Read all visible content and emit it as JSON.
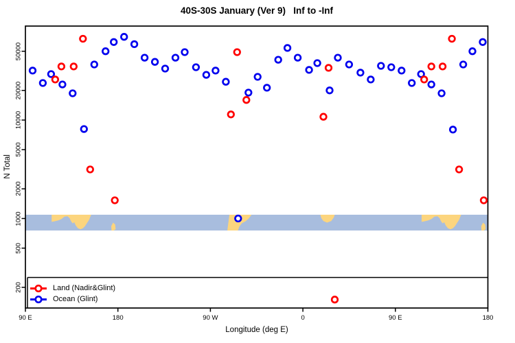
{
  "title": "40S-30S January (Ver 9)   Inf to -Inf",
  "chart_data": {
    "type": "scatter",
    "title": "40S-30S January (Ver 9)   Inf to -Inf",
    "xlabel": "Longitude (deg E)",
    "ylabel": "N Total",
    "x_axis": {
      "min": 90,
      "max": 540,
      "ticks": [
        {
          "value": 90,
          "label": "90 E"
        },
        {
          "value": 180,
          "label": "180"
        },
        {
          "value": 270,
          "label": "90 W"
        },
        {
          "value": 360,
          "label": "0"
        },
        {
          "value": 450,
          "label": "90 E"
        },
        {
          "value": 540,
          "label": "180"
        }
      ]
    },
    "y_axis": {
      "scale": "log",
      "min": 120,
      "max": 90000,
      "ticks": [
        {
          "value": 200,
          "label": "200"
        },
        {
          "value": 500,
          "label": "500"
        },
        {
          "value": 1000,
          "label": "1000"
        },
        {
          "value": 2000,
          "label": "2000"
        },
        {
          "value": 5000,
          "label": "5000"
        },
        {
          "value": 10000,
          "label": "10000"
        },
        {
          "value": 20000,
          "label": "20000"
        },
        {
          "value": 50000,
          "label": "50000"
        }
      ]
    },
    "legend": {
      "position": "bottom-left",
      "items": [
        {
          "label": "Land (Nadir&Glint)",
          "color": "#ff0000"
        },
        {
          "label": "Ocean (Glint)",
          "color": "#0000ee"
        }
      ]
    },
    "series": [
      {
        "name": "Ocean (Glint)",
        "color": "#0000ee",
        "points": [
          {
            "lon": 97,
            "n": 31800
          },
          {
            "lon": 107,
            "n": 23800
          },
          {
            "lon": 115,
            "n": 29300
          },
          {
            "lon": 126,
            "n": 23000
          },
          {
            "lon": 136,
            "n": 18700
          },
          {
            "lon": 147,
            "n": 8100
          },
          {
            "lon": 157,
            "n": 36700
          },
          {
            "lon": 168,
            "n": 50000
          },
          {
            "lon": 176,
            "n": 62000
          },
          {
            "lon": 186,
            "n": 70000
          },
          {
            "lon": 196,
            "n": 59000
          },
          {
            "lon": 206,
            "n": 43000
          },
          {
            "lon": 216,
            "n": 39000
          },
          {
            "lon": 226,
            "n": 33300
          },
          {
            "lon": 236,
            "n": 43000
          },
          {
            "lon": 245,
            "n": 49000
          },
          {
            "lon": 256,
            "n": 34400
          },
          {
            "lon": 266,
            "n": 28800
          },
          {
            "lon": 275,
            "n": 31800
          },
          {
            "lon": 285,
            "n": 24500
          },
          {
            "lon": 297,
            "n": 1000
          },
          {
            "lon": 307,
            "n": 19000
          },
          {
            "lon": 316,
            "n": 27500
          },
          {
            "lon": 325,
            "n": 21300
          },
          {
            "lon": 336,
            "n": 41000
          },
          {
            "lon": 345,
            "n": 54000
          },
          {
            "lon": 355,
            "n": 43000
          },
          {
            "lon": 366,
            "n": 32300
          },
          {
            "lon": 374,
            "n": 37900
          },
          {
            "lon": 386,
            "n": 20000
          },
          {
            "lon": 394,
            "n": 43000
          },
          {
            "lon": 405,
            "n": 36700
          },
          {
            "lon": 416,
            "n": 30300
          },
          {
            "lon": 426,
            "n": 25800
          },
          {
            "lon": 436,
            "n": 35500
          },
          {
            "lon": 446,
            "n": 34400
          },
          {
            "lon": 456,
            "n": 31800
          },
          {
            "lon": 466,
            "n": 23800
          },
          {
            "lon": 475,
            "n": 29300
          },
          {
            "lon": 485,
            "n": 23000
          },
          {
            "lon": 495,
            "n": 18700
          },
          {
            "lon": 506,
            "n": 8000
          },
          {
            "lon": 516,
            "n": 36700
          },
          {
            "lon": 525,
            "n": 50000
          },
          {
            "lon": 535,
            "n": 62000
          }
        ]
      },
      {
        "name": "Land (Nadir&Glint)",
        "color": "#ff0000",
        "points": [
          {
            "lon": 119,
            "n": 25800
          },
          {
            "lon": 125,
            "n": 35000
          },
          {
            "lon": 137,
            "n": 35000
          },
          {
            "lon": 146,
            "n": 67000
          },
          {
            "lon": 153,
            "n": 3150
          },
          {
            "lon": 177,
            "n": 1530
          },
          {
            "lon": 290,
            "n": 11400
          },
          {
            "lon": 296,
            "n": 49000
          },
          {
            "lon": 305,
            "n": 16000
          },
          {
            "lon": 380,
            "n": 10800
          },
          {
            "lon": 385,
            "n": 33900
          },
          {
            "lon": 391,
            "n": 150
          },
          {
            "lon": 478,
            "n": 25800
          },
          {
            "lon": 485,
            "n": 35000
          },
          {
            "lon": 496,
            "n": 35000
          },
          {
            "lon": 505,
            "n": 67000
          },
          {
            "lon": 512,
            "n": 3150
          },
          {
            "lon": 536,
            "n": 1530
          }
        ]
      }
    ],
    "map_strip": {
      "n_center": 1000,
      "ocean_color": "#a8bdde",
      "land_color": "#fcd57e",
      "land_shapes": [
        {
          "name": "australia",
          "points": [
            [
              115.5,
              0
            ],
            [
              115.5,
              0.45
            ],
            [
              118,
              0.42
            ],
            [
              122,
              0.36
            ],
            [
              125,
              0.28
            ],
            [
              128,
              0.12
            ],
            [
              131,
              0.1
            ],
            [
              133,
              0.22
            ],
            [
              134.5,
              0.42
            ],
            [
              136,
              0.55
            ],
            [
              137.5,
              0.48
            ],
            [
              139,
              0.68
            ],
            [
              141,
              0.85
            ],
            [
              143.5,
              0.92
            ],
            [
              146,
              0.86
            ],
            [
              148,
              0.72
            ],
            [
              150,
              0.52
            ],
            [
              152,
              0.32
            ],
            [
              153.5,
              0.08
            ],
            [
              154,
              0
            ]
          ]
        },
        {
          "name": "new-zealand",
          "points": [
            [
              173.5,
              0.72
            ],
            [
              175.3,
              0.5
            ],
            [
              177.3,
              0.62
            ],
            [
              177.8,
              0.92
            ],
            [
              175.8,
              1
            ],
            [
              173.8,
              1
            ]
          ]
        },
        {
          "name": "south-america",
          "points": [
            [
              288.5,
              0
            ],
            [
              310,
              0
            ],
            [
              307.5,
              0.22
            ],
            [
              304.5,
              0.4
            ],
            [
              300.5,
              0.55
            ],
            [
              298.2,
              0.75
            ],
            [
              296.8,
              1
            ],
            [
              286.5,
              1
            ],
            [
              287.4,
              0.55
            ]
          ]
        },
        {
          "name": "africa",
          "points": [
            [
              377,
              0
            ],
            [
              391,
              0
            ],
            [
              390,
              0.18
            ],
            [
              387.5,
              0.4
            ],
            [
              383.5,
              0.5
            ],
            [
              380,
              0.4
            ],
            [
              378,
              0.22
            ]
          ]
        },
        {
          "name": "australia-wrap",
          "points": [
            [
              475.5,
              0
            ],
            [
              475.5,
              0.45
            ],
            [
              478,
              0.42
            ],
            [
              482,
              0.36
            ],
            [
              485,
              0.28
            ],
            [
              488,
              0.12
            ],
            [
              491,
              0.1
            ],
            [
              493,
              0.22
            ],
            [
              494.5,
              0.42
            ],
            [
              496,
              0.55
            ],
            [
              497.5,
              0.48
            ],
            [
              499,
              0.68
            ],
            [
              501,
              0.85
            ],
            [
              503.5,
              0.92
            ],
            [
              506,
              0.86
            ],
            [
              508,
              0.72
            ],
            [
              510,
              0.52
            ],
            [
              512,
              0.32
            ],
            [
              513.5,
              0.08
            ],
            [
              514,
              0
            ]
          ]
        },
        {
          "name": "new-zealand-wrap",
          "points": [
            [
              533.5,
              0.72
            ],
            [
              535.3,
              0.5
            ],
            [
              537.3,
              0.62
            ],
            [
              537.8,
              0.92
            ],
            [
              535.8,
              1
            ],
            [
              533.8,
              1
            ]
          ]
        }
      ]
    }
  }
}
